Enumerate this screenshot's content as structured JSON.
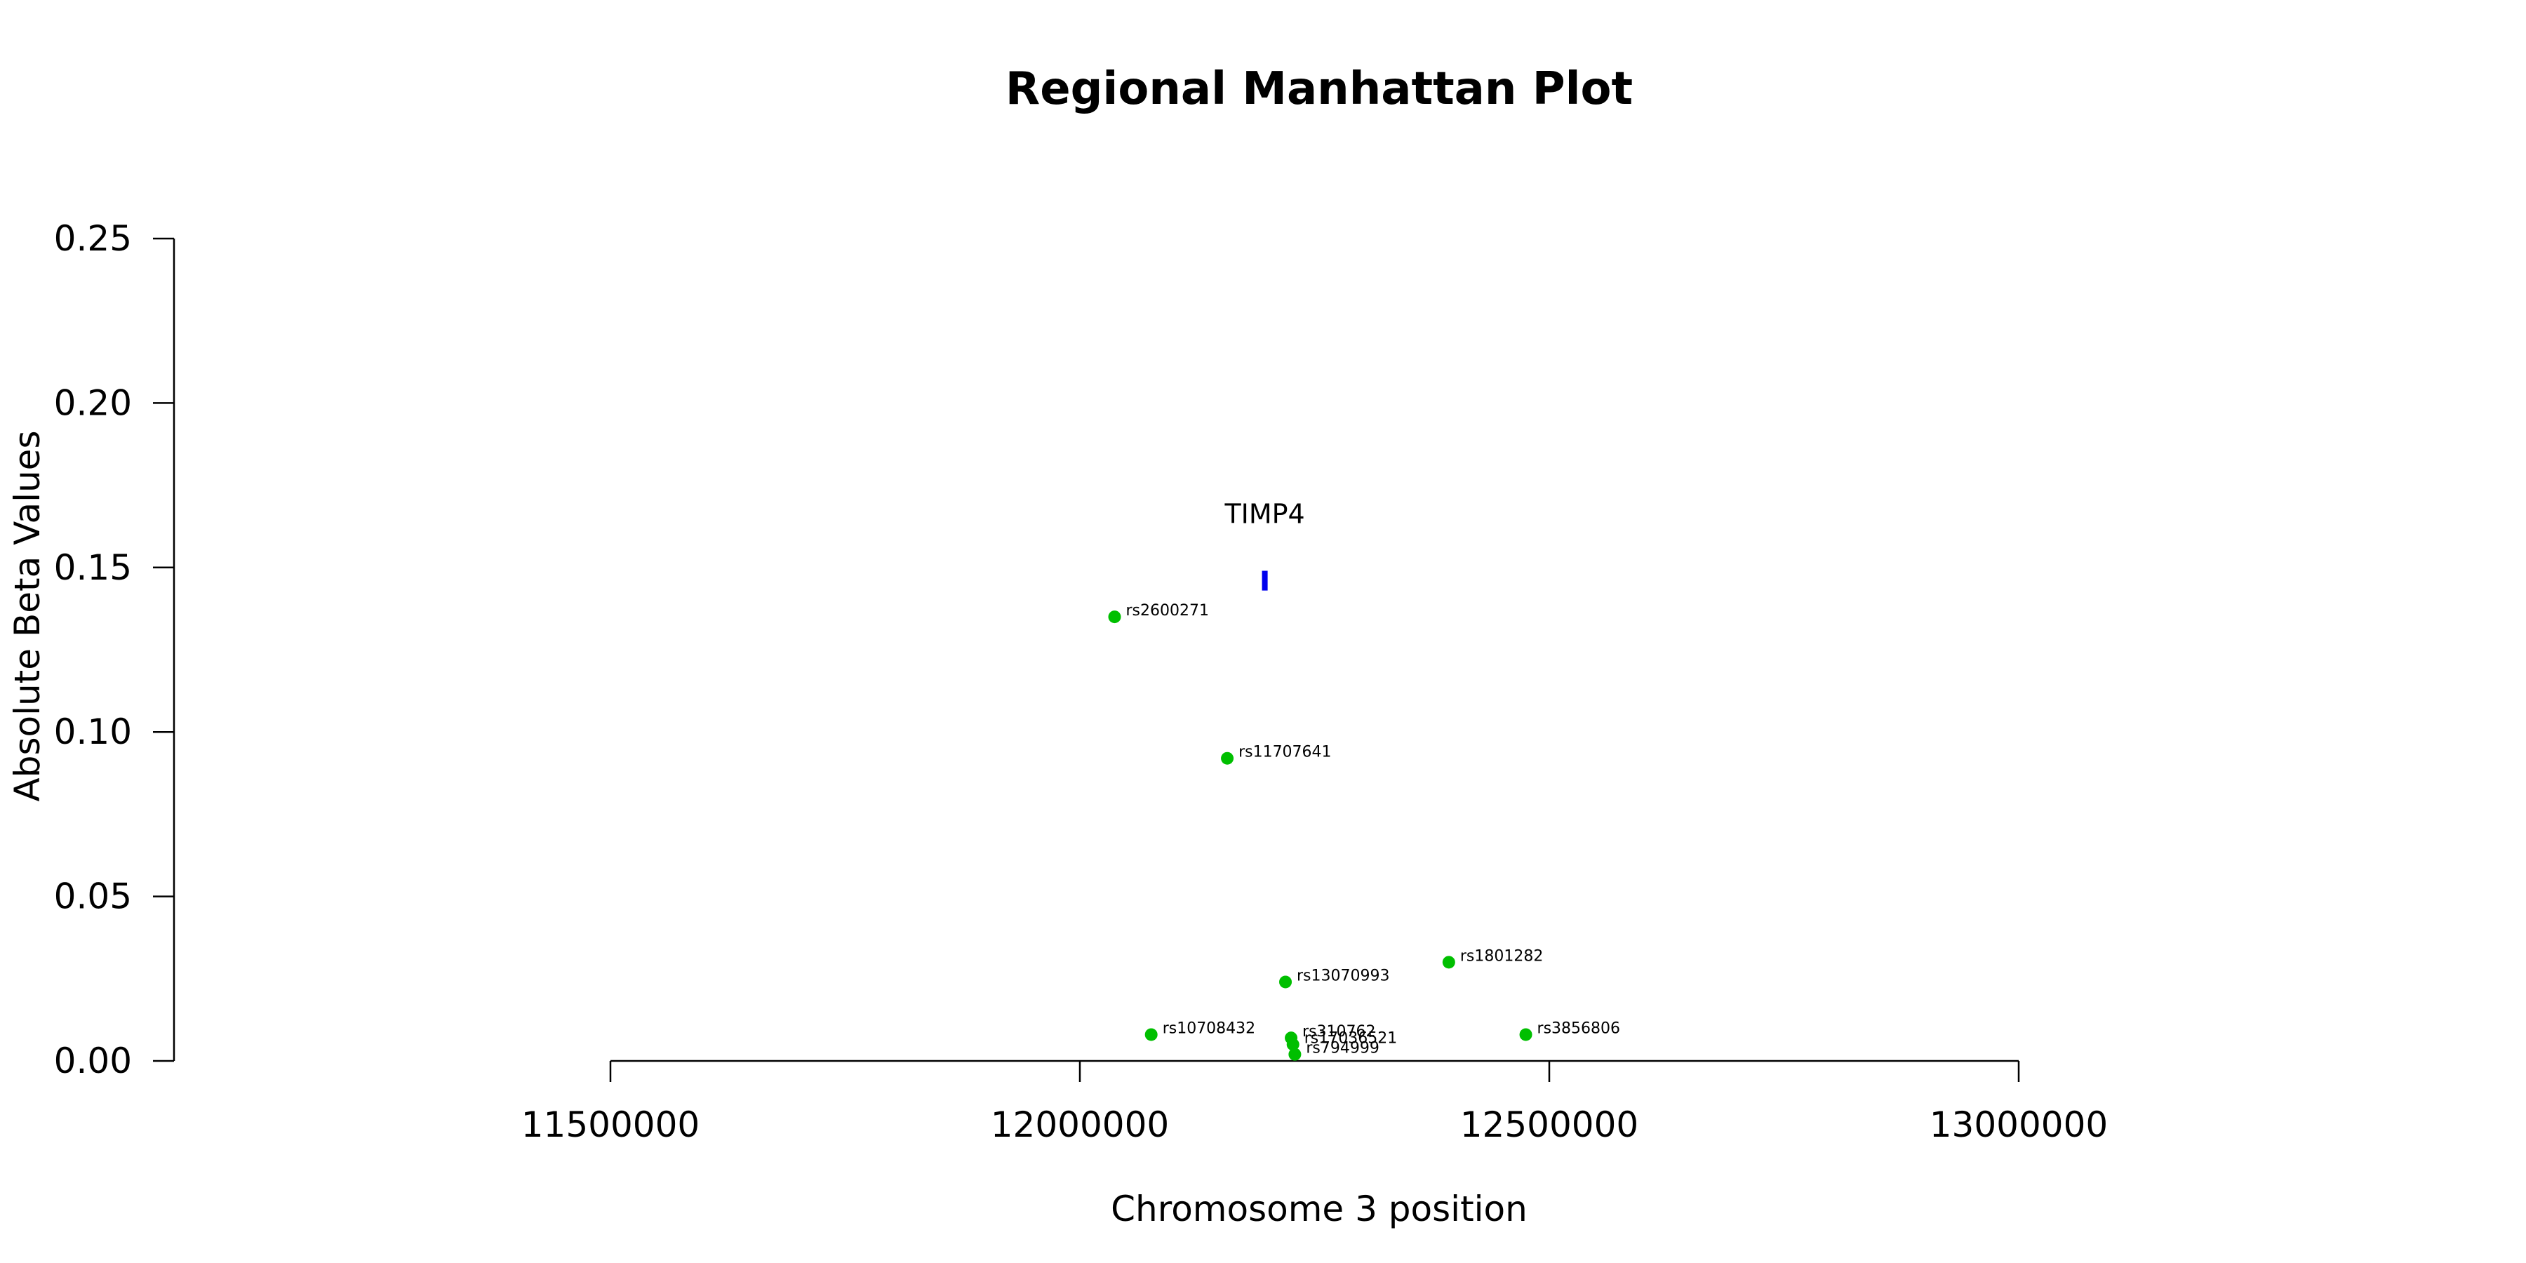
{
  "chart_data": {
    "type": "scatter",
    "title": "Regional Manhattan Plot",
    "xlabel": "Chromosome 3 position",
    "ylabel": "Absolute Beta Values",
    "xlim": [
      11500000,
      13000000
    ],
    "ylim": [
      0,
      0.25
    ],
    "x_ticks": [
      "11500000",
      "12000000",
      "12500000",
      "13000000"
    ],
    "y_ticks": [
      "0.00",
      "0.05",
      "0.10",
      "0.15",
      "0.20",
      "0.25"
    ],
    "point_color": "#00bf00",
    "gene_color": "#0000ee",
    "gene": {
      "name": "TIMP4",
      "start": 12194000,
      "end": 12200000,
      "y_min": 0.143,
      "y_max": 0.149
    },
    "points": [
      {
        "label": "rs2600271",
        "x": 12037000,
        "y": 0.135
      },
      {
        "label": "rs11707641",
        "x": 12157000,
        "y": 0.092
      },
      {
        "label": "rs1801282",
        "x": 12393000,
        "y": 0.03
      },
      {
        "label": "rs13070993",
        "x": 12219000,
        "y": 0.024
      },
      {
        "label": "rs10708432",
        "x": 12076000,
        "y": 0.008
      },
      {
        "label": "rs3856806",
        "x": 12475000,
        "y": 0.008
      },
      {
        "label": "rs310762",
        "x": 12225000,
        "y": 0.007
      },
      {
        "label": "rs17036521",
        "x": 12227000,
        "y": 0.005
      },
      {
        "label": "rs794999",
        "x": 12229000,
        "y": 0.002
      }
    ]
  }
}
